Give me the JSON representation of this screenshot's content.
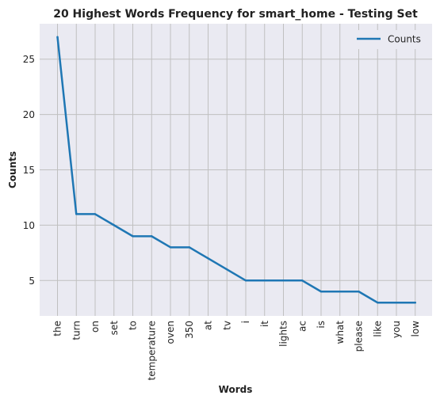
{
  "chart_data": {
    "type": "line",
    "title": "20 Highest Words Frequency for smart_home - Testing Set",
    "xlabel": "Words",
    "ylabel": "Counts",
    "categories": [
      "the",
      "turn",
      "on",
      "set",
      "to",
      "temperature",
      "oven",
      "350",
      "at",
      "tv",
      "i",
      "it",
      "lights",
      "ac",
      "is",
      "what",
      "please",
      "like",
      "you",
      "low"
    ],
    "series": [
      {
        "name": "Counts",
        "values": [
          27,
          11,
          11,
          10,
          9,
          9,
          8,
          8,
          7,
          6,
          5,
          5,
          5,
          5,
          4,
          4,
          4,
          3,
          3,
          3
        ]
      }
    ],
    "ylim": [
      1.8,
      28.2
    ],
    "yticks": [
      5,
      10,
      15,
      20,
      25
    ],
    "grid": true,
    "legend": "top-right",
    "line_color": "#1f77b4",
    "background_color": "#eaeaf2",
    "grid_color": "#c0c0c0"
  }
}
